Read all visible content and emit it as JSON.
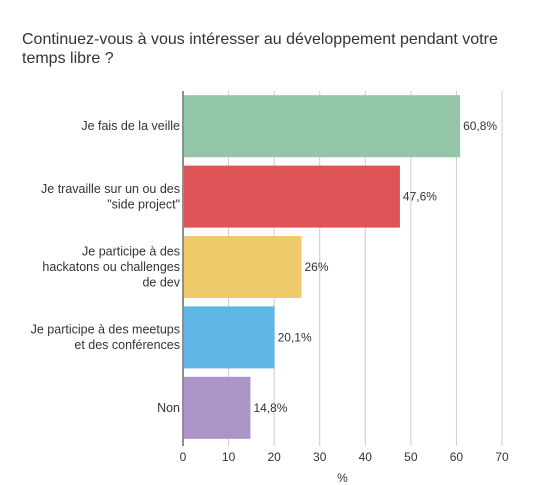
{
  "chart_data": {
    "type": "bar",
    "orientation": "horizontal",
    "title": "Continuez-vous à vous intéresser au développement pendant votre temps libre ?",
    "categories": [
      [
        "Je fais de la veille"
      ],
      [
        "Je travaille sur un ou des",
        "\"side project\""
      ],
      [
        "Je participe à des",
        "hackatons ou challenges",
        "de dev"
      ],
      [
        "Je participe à des meetups",
        "et des conférences"
      ],
      [
        "Non"
      ]
    ],
    "values": [
      60.8,
      47.6,
      26,
      20.1,
      14.8
    ],
    "value_labels": [
      "60,8%",
      "47,6%",
      "26%",
      "20,1%",
      "14,8%"
    ],
    "colors": [
      "#93c6a9",
      "#de5356",
      "#efca6a",
      "#5fb5e6",
      "#ac93c8"
    ],
    "xlabel": "%",
    "xlim": [
      0,
      70
    ],
    "xticks": [
      0,
      10,
      20,
      30,
      40,
      50,
      60,
      70
    ],
    "grid": true
  }
}
